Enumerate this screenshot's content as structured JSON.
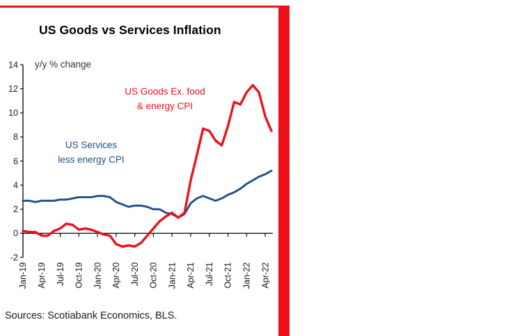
{
  "page": {
    "accent_red": "#ec111a",
    "source": "Sources: Scotiabank Economics, BLS."
  },
  "chart_data": {
    "type": "line",
    "title": "US Goods vs Services Inflation",
    "units": "y/y % change",
    "ylim": [
      -2,
      14
    ],
    "ytick_step": 2,
    "xtick_every": 3,
    "legend_position": "inline-annotations",
    "grid": false,
    "x": [
      "Jan-19",
      "Feb-19",
      "Mar-19",
      "Apr-19",
      "May-19",
      "Jun-19",
      "Jul-19",
      "Aug-19",
      "Sep-19",
      "Oct-19",
      "Nov-19",
      "Dec-19",
      "Jan-20",
      "Feb-20",
      "Mar-20",
      "Apr-20",
      "May-20",
      "Jun-20",
      "Jul-20",
      "Aug-20",
      "Sep-20",
      "Oct-20",
      "Nov-20",
      "Dec-20",
      "Jan-21",
      "Feb-21",
      "Mar-21",
      "Apr-21",
      "May-21",
      "Jun-21",
      "Jul-21",
      "Aug-21",
      "Sep-21",
      "Oct-21",
      "Nov-21",
      "Dec-21",
      "Jan-22",
      "Feb-22",
      "Mar-22",
      "Apr-22",
      "May-22"
    ],
    "series": [
      {
        "name": "US Goods Ex. food & energy CPI",
        "label_lines": [
          "US Goods Ex. food",
          "& energy CPI"
        ],
        "color": "#ec111a",
        "values": [
          0.2,
          0.1,
          0.1,
          -0.2,
          -0.2,
          0.2,
          0.4,
          0.8,
          0.7,
          0.3,
          0.4,
          0.3,
          0.1,
          -0.1,
          -0.2,
          -0.9,
          -1.1,
          -1.0,
          -1.1,
          -0.8,
          -0.2,
          0.4,
          1.0,
          1.4,
          1.7,
          1.3,
          1.7,
          4.4,
          6.5,
          8.7,
          8.5,
          7.7,
          7.3,
          8.9,
          10.9,
          10.7,
          11.7,
          12.3,
          11.7,
          9.7,
          8.5
        ]
      },
      {
        "name": "US Services less energy CPI",
        "label_lines": [
          "US Services",
          "less energy CPI"
        ],
        "color": "#1f4e8c",
        "values": [
          2.7,
          2.7,
          2.6,
          2.7,
          2.7,
          2.7,
          2.8,
          2.8,
          2.9,
          3.0,
          3.0,
          3.0,
          3.1,
          3.1,
          3.0,
          2.6,
          2.4,
          2.2,
          2.3,
          2.3,
          2.2,
          2.0,
          2.0,
          1.7,
          1.6,
          1.3,
          1.6,
          2.5,
          2.9,
          3.1,
          2.9,
          2.7,
          2.9,
          3.2,
          3.4,
          3.7,
          4.1,
          4.4,
          4.7,
          4.9,
          5.2
        ]
      }
    ],
    "source": "Sources: Scotiabank Economics, BLS."
  }
}
